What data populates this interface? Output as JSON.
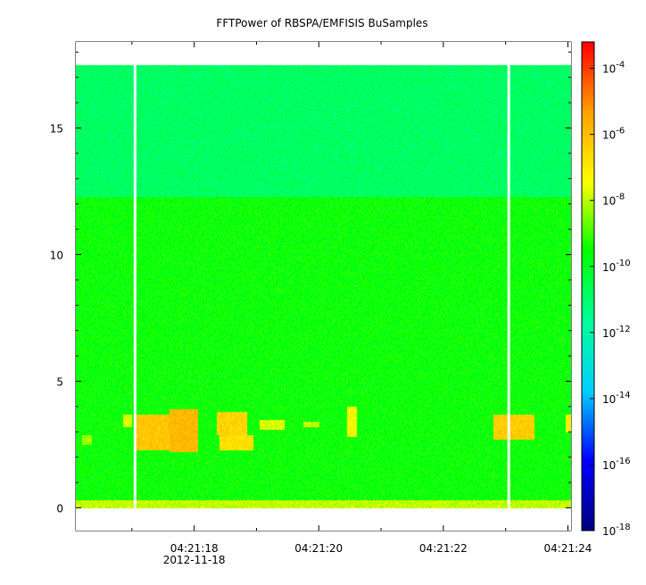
{
  "chart_data": {
    "type": "heatmap",
    "title": "FFTPower of RBSPA/EMFISIS  BuSamples",
    "xlabel": "",
    "ylabel": "",
    "x_ticks": [
      {
        "t": 18,
        "label": "04:21:18",
        "sublabel": "2012-11-18"
      },
      {
        "t": 20,
        "label": "04:21:20"
      },
      {
        "t": 22,
        "label": "04:21:22"
      },
      {
        "t": 24,
        "label": "04:21:24"
      }
    ],
    "x_minor_ticks": [
      17,
      19,
      21,
      23
    ],
    "xlim": [
      16.1,
      24.05
    ],
    "y_ticks": [
      0,
      5,
      10,
      15
    ],
    "ylim": [
      -0.9,
      18.4
    ],
    "data_ylim": [
      0,
      17.5
    ],
    "gap_times": [
      17.05,
      23.05
    ],
    "log_scale_colorbar": true,
    "colorbar": {
      "exponent_min": -18,
      "exponent_max": -3.2,
      "tick_exponents": [
        -18,
        -16,
        -14,
        -12,
        -10,
        -8,
        -6,
        -4
      ],
      "tick_base": "10",
      "colormap": [
        "#000080",
        "#0000ff",
        "#00d0ff",
        "#00ff9a",
        "#00ff00",
        "#ffff00",
        "#ffa000",
        "#ff0000"
      ]
    },
    "bands": [
      {
        "y0": 12.3,
        "y1": 17.5,
        "level": 0.48
      },
      {
        "y0": 0.3,
        "y1": 12.3,
        "level": 0.57
      },
      {
        "y0": 0.0,
        "y1": 0.3,
        "level": 0.68
      }
    ],
    "bursts": [
      {
        "t0": 17.05,
        "t1": 17.75,
        "y0": 2.3,
        "y1": 3.7,
        "level": 0.8
      },
      {
        "t0": 17.6,
        "t1": 18.05,
        "y0": 2.2,
        "y1": 3.9,
        "level": 0.82
      },
      {
        "t0": 18.35,
        "t1": 18.85,
        "y0": 2.9,
        "y1": 3.8,
        "level": 0.78
      },
      {
        "t0": 18.4,
        "t1": 18.95,
        "y0": 2.3,
        "y1": 2.9,
        "level": 0.76
      },
      {
        "t0": 19.05,
        "t1": 19.45,
        "y0": 3.1,
        "y1": 3.5,
        "level": 0.7
      },
      {
        "t0": 19.75,
        "t1": 20.0,
        "y0": 3.2,
        "y1": 3.4,
        "level": 0.68
      },
      {
        "t0": 20.45,
        "t1": 20.6,
        "y0": 2.8,
        "y1": 4.0,
        "level": 0.72
      },
      {
        "t0": 22.8,
        "t1": 23.45,
        "y0": 2.7,
        "y1": 3.7,
        "level": 0.79
      },
      {
        "t0": 23.95,
        "t1": 24.05,
        "y0": 3.0,
        "y1": 3.7,
        "level": 0.74
      },
      {
        "t0": 16.2,
        "t1": 16.35,
        "y0": 2.5,
        "y1": 2.9,
        "level": 0.66
      },
      {
        "t0": 16.85,
        "t1": 17.0,
        "y0": 3.2,
        "y1": 3.7,
        "level": 0.7
      }
    ]
  }
}
